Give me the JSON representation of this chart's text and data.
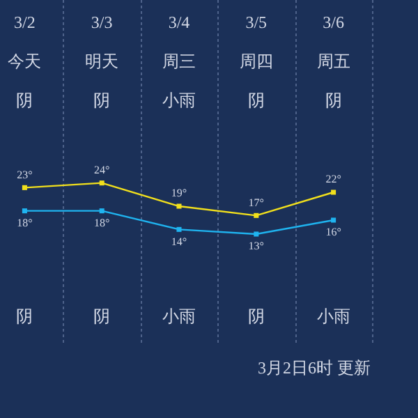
{
  "chart_data": {
    "type": "line",
    "categories": [
      "3/2",
      "3/3",
      "3/4",
      "3/5",
      "3/6"
    ],
    "series": [
      {
        "color": "#f2e01c",
        "values": [
          23,
          24,
          19,
          17,
          22
        ],
        "value_labels": [
          "23°",
          "24°",
          "19°",
          "17°",
          "22°"
        ]
      },
      {
        "color": "#1fb4f0",
        "values": [
          18,
          18,
          14,
          13,
          16
        ],
        "value_labels": [
          "18°",
          "18°",
          "14°",
          "13°",
          "16°"
        ]
      }
    ],
    "tick_labels": "x",
    "grid": "x",
    "legend": false,
    "marker": "square",
    "line_style": "solid",
    "annotations": [
      "今天",
      "明天",
      "周三",
      "周四",
      "周五",
      "阴",
      "阴",
      "小雨",
      "阴",
      "阴",
      "阴",
      "阴",
      "小雨",
      "阴",
      "小雨",
      "3月2日6时 更新"
    ]
  }
}
